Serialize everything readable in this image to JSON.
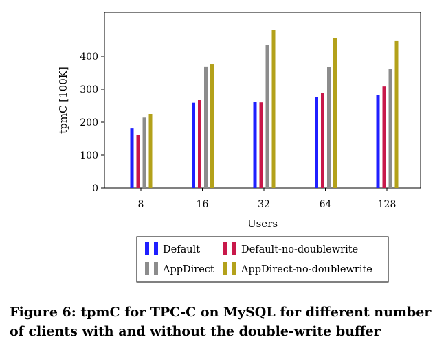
{
  "chart_data": {
    "type": "bar",
    "title": "",
    "xlabel": "Users",
    "ylabel": "tpmC [100K]",
    "categories": [
      "8",
      "16",
      "32",
      "64",
      "128"
    ],
    "series": [
      {
        "name": "Default",
        "color": "#1f1fff",
        "values": [
          181,
          259,
          262,
          275,
          282
        ]
      },
      {
        "name": "Default-no-doublewrite",
        "color": "#c8184a",
        "values": [
          161,
          268,
          260,
          288,
          308
        ]
      },
      {
        "name": "AppDirect",
        "color": "#8c8c8c",
        "values": [
          214,
          369,
          434,
          368,
          361
        ]
      },
      {
        "name": "AppDirect-no-doublewrite",
        "color": "#b3a11a",
        "values": [
          225,
          377,
          480,
          456,
          446
        ]
      }
    ],
    "ylim": [
      0,
      500
    ],
    "yticks": [
      "0",
      "100",
      "200",
      "300",
      "400"
    ],
    "grid": false,
    "legend_position": "bottom-center"
  },
  "caption": "Figure 6: tpmC for TPC-C on MySQL for different number of clients with and without the double-write buffer"
}
